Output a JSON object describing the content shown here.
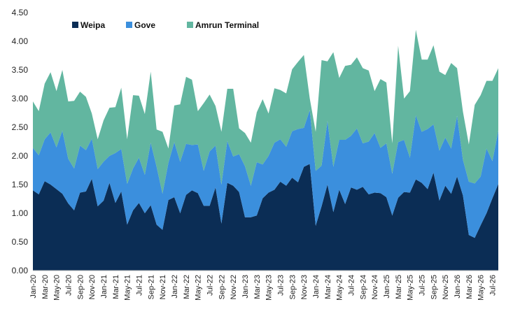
{
  "chart_data": {
    "type": "area",
    "stacked": true,
    "title": "",
    "xlabel": "",
    "ylabel": "",
    "ylim": [
      0,
      4.5
    ],
    "y_ticks": [
      "0.00",
      "0.50",
      "1.00",
      "1.50",
      "2.00",
      "2.50",
      "3.00",
      "3.50",
      "4.00",
      "4.50"
    ],
    "grid": false,
    "legend_position": "top-left",
    "x": [
      "Jan-20",
      "Feb-20",
      "Mar-20",
      "Apr-20",
      "May-20",
      "Jun-20",
      "Jul-20",
      "Aug-20",
      "Sep-20",
      "Oct-20",
      "Nov-20",
      "Dec-20",
      "Jan-21",
      "Feb-21",
      "Mar-21",
      "Apr-21",
      "May-21",
      "Jun-21",
      "Jul-21",
      "Aug-21",
      "Sep-21",
      "Oct-21",
      "Nov-21",
      "Dec-21",
      "Jan-22",
      "Feb-22",
      "Mar-22",
      "Apr-22",
      "May-22",
      "Jun-22",
      "Jul-22",
      "Aug-22",
      "Sep-22",
      "Oct-22",
      "Nov-22",
      "Dec-22",
      "Jan-23",
      "Feb-23",
      "Mar-23",
      "Apr-23",
      "May-23",
      "Jun-23",
      "Jul-23",
      "Aug-23",
      "Sep-23",
      "Oct-23",
      "Nov-23",
      "Dec-23",
      "Jan-24",
      "Feb-24",
      "Mar-24",
      "Apr-24",
      "May-24",
      "Jun-24",
      "Jul-24",
      "Aug-24",
      "Sep-24",
      "Oct-24",
      "Nov-24",
      "Dec-24",
      "Jan-25",
      "Feb-25",
      "Mar-25",
      "Apr-25",
      "May-25",
      "Jun-25",
      "Jul-25",
      "Aug-25",
      "Sep-25",
      "Oct-25",
      "Nov-25",
      "Dec-25",
      "Jan-26",
      "Feb-26",
      "Mar-26",
      "Apr-26",
      "May-26",
      "Jun-26",
      "Jul-26",
      "Aug-26"
    ],
    "x_tick_labels": [
      "Jan-20",
      "Mar-20",
      "May-20",
      "Jul-20",
      "Sep-20",
      "Nov-20",
      "Jan-21",
      "Mar-21",
      "May-21",
      "Jul-21",
      "Sep-21",
      "Nov-21",
      "Jan-22",
      "Mar-22",
      "May-22",
      "Jul-22",
      "Sep-22",
      "Nov-22",
      "Jan-23",
      "Mar-23",
      "May-23",
      "Jul-23",
      "Sep-23",
      "Nov-23",
      "Jan-24",
      "Mar-24",
      "May-24",
      "Jul-24",
      "Sep-24",
      "Nov-24",
      "Jan-25",
      "Mar-25",
      "May-25",
      "Jul-25",
      "Sep-25",
      "Nov-25",
      "Jan-26",
      "Mar-26",
      "May-26",
      "Jul-26"
    ],
    "series": [
      {
        "name": "Weipa",
        "color": "#0b2d55",
        "values": [
          1.4,
          1.33,
          1.56,
          1.5,
          1.42,
          1.34,
          1.17,
          1.05,
          1.36,
          1.38,
          1.6,
          1.12,
          1.22,
          1.53,
          1.18,
          1.38,
          0.8,
          1.05,
          1.18,
          1.0,
          1.14,
          0.8,
          0.71,
          1.23,
          1.28,
          1.0,
          1.32,
          1.4,
          1.35,
          1.13,
          1.13,
          1.45,
          0.82,
          1.53,
          1.48,
          1.37,
          0.93,
          0.93,
          0.96,
          1.26,
          1.36,
          1.41,
          1.55,
          1.48,
          1.62,
          1.54,
          1.81,
          1.86,
          0.78,
          1.12,
          1.5,
          1.02,
          1.41,
          1.16,
          1.45,
          1.41,
          1.46,
          1.33,
          1.36,
          1.35,
          1.28,
          0.96,
          1.27,
          1.37,
          1.36,
          1.59,
          1.53,
          1.42,
          1.71,
          1.22,
          1.48,
          1.34,
          1.64,
          1.31,
          0.62,
          0.57,
          0.79,
          1.0,
          1.26,
          1.51
        ]
      },
      {
        "name": "Gove",
        "color": "#3b8fdd",
        "values": [
          0.74,
          0.68,
          0.73,
          0.91,
          0.73,
          1.1,
          0.78,
          0.73,
          0.82,
          0.72,
          0.7,
          0.65,
          0.68,
          0.47,
          0.87,
          0.74,
          0.71,
          0.73,
          0.79,
          0.67,
          1.09,
          1.01,
          0.63,
          0.65,
          0.96,
          0.9,
          0.89,
          0.79,
          0.85,
          0.61,
          0.95,
          0.73,
          0.68,
          0.73,
          0.51,
          0.66,
          0.89,
          0.55,
          0.93,
          0.59,
          0.64,
          0.82,
          0.74,
          0.68,
          0.81,
          0.93,
          0.68,
          0.94,
          0.96,
          0.71,
          1.11,
          0.79,
          0.87,
          1.12,
          0.9,
          1.07,
          0.76,
          0.92,
          1.04,
          0.79,
          0.94,
          0.73,
          0.97,
          0.91,
          0.61,
          1.12,
          0.89,
          1.05,
          0.84,
          0.87,
          0.84,
          0.79,
          1.06,
          0.62,
          0.93,
          0.95,
          0.85,
          1.13,
          0.65,
          0.93
        ]
      },
      {
        "name": "Amrun Terminal",
        "color": "#62b6a0",
        "values": [
          0.81,
          0.77,
          0.97,
          1.05,
          0.98,
          1.06,
          1.0,
          1.18,
          0.94,
          0.93,
          0.44,
          0.52,
          0.72,
          0.84,
          0.8,
          1.07,
          0.78,
          1.28,
          1.08,
          1.06,
          1.24,
          0.65,
          1.08,
          0.25,
          0.64,
          1.0,
          1.17,
          1.14,
          0.58,
          1.18,
          0.99,
          0.69,
          0.92,
          0.91,
          1.18,
          0.45,
          0.58,
          0.75,
          0.87,
          1.14,
          0.74,
          0.95,
          0.86,
          0.93,
          1.08,
          1.17,
          1.27,
          0.2,
          0.68,
          1.84,
          1.04,
          2.0,
          1.08,
          1.29,
          1.24,
          1.24,
          1.31,
          1.24,
          0.73,
          1.2,
          1.06,
          0.53,
          1.68,
          0.72,
          1.16,
          1.49,
          1.26,
          1.21,
          1.38,
          1.38,
          1.09,
          1.49,
          0.83,
          0.84,
          0.65,
          1.37,
          1.42,
          1.18,
          1.4,
          1.09
        ]
      }
    ]
  }
}
